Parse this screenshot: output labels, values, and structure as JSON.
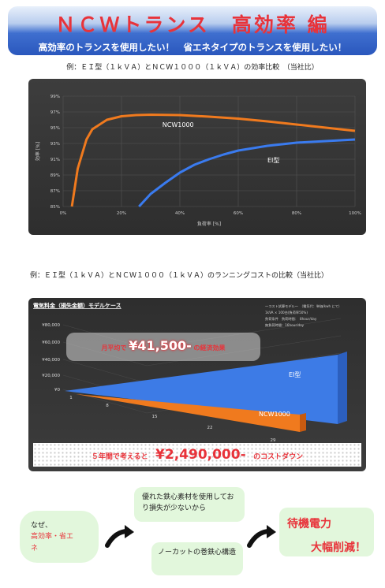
{
  "header": {
    "title": "ＮＣＷトランス　高効率 編",
    "subtitle": "高効率のトランスを使用したい！　省エネタイプのトランスを使用したい！"
  },
  "captions": {
    "efficiency": "例：ＥＩ型（１ｋＶＡ）とＮＣＷ１０００（１ｋＶＡ）の効率比較　（当社比）",
    "running_cost": "例：ＥＩ型（１ｋＶＡ）とＮＣＷ１０００（１ｋＶＡ）のランニングコストの比較（当社比）"
  },
  "chart_data": [
    {
      "type": "line",
      "xlabel": "負荷率 [%]",
      "ylabel": "効率 [%]",
      "x_ticks": [
        "0%",
        "20%",
        "40%",
        "60%",
        "80%",
        "100%"
      ],
      "y_ticks": [
        "85%",
        "87%",
        "89%",
        "91%",
        "93%",
        "95%",
        "97%",
        "99%"
      ],
      "xlim": [
        0,
        100
      ],
      "ylim": [
        85,
        99
      ],
      "grid": true,
      "series": [
        {
          "name": "NCW1000",
          "color": "#f07a1e",
          "x": [
            3,
            5,
            8,
            10,
            15,
            20,
            25,
            30,
            40,
            50,
            60,
            70,
            80,
            90,
            100
          ],
          "y": [
            85,
            89.8,
            93.5,
            94.8,
            96.0,
            96.45,
            96.6,
            96.65,
            96.6,
            96.4,
            96.15,
            95.8,
            95.4,
            95.0,
            94.6
          ]
        },
        {
          "name": "EI型",
          "color": "#3a7bef",
          "x": [
            26,
            30,
            35,
            40,
            45,
            50,
            55,
            60,
            70,
            80,
            90,
            100
          ],
          "y": [
            85,
            86.6,
            88.0,
            89.3,
            90.3,
            91.0,
            91.6,
            92.1,
            92.7,
            93.1,
            93.3,
            93.5
          ]
        }
      ]
    },
    {
      "type": "area",
      "title": "電気料金（損失金額）モデルケース",
      "y_ticks": [
        "¥80,000",
        "¥60,000",
        "¥40,000",
        "¥20,000",
        "¥0"
      ],
      "x_ticks": [
        "1",
        "8",
        "15",
        "22",
        "29"
      ],
      "series": [
        {
          "name": "EI型",
          "color": "#3d7be6"
        },
        {
          "name": "NCW1000",
          "color": "#f07a1e"
        }
      ]
    }
  ],
  "cost_chart": {
    "note_lines": [
      "～コスト試算モデル～　（電気代：単価/kwh にて）",
      "1kVA × 100台(負荷率50%)",
      "負荷条件　負荷時間：　8hour/day",
      "無負荷時間：16hour/day"
    ],
    "monthly_prefix": "月平均で",
    "monthly_amount": "¥41,500-",
    "monthly_suffix": "の経済効果",
    "total_prefix": "５年間で考えると",
    "total_amount": "¥2,490,000-",
    "total_suffix": "のコストダウン"
  },
  "flow": {
    "why_line1": "なぜ、",
    "why_line2": "高効率・省エ",
    "why_line3": "ネ",
    "reason1": "優れた鉄心素材を使用してお り損失が少ないから",
    "reason2": "ノーカットの巻鉄心構造",
    "result_line1": "待機電力",
    "result_line2": "大幅削減！"
  }
}
